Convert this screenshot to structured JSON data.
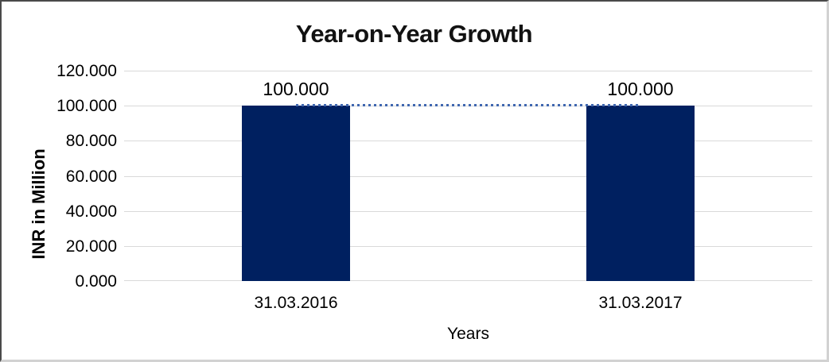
{
  "window": {
    "background": "#ffffff",
    "border_dark": "#4a4a4a",
    "border_light": "#d2d2d2"
  },
  "chart_data": {
    "type": "bar",
    "title": "Year-on-Year Growth",
    "categories": [
      "31.03.2016",
      "31.03.2017"
    ],
    "series": [
      {
        "values": [
          100.0,
          100.0
        ],
        "data_labels": [
          "100.000",
          "100.000"
        ],
        "color": "#002060"
      }
    ],
    "connector_line": {
      "value": 100.0,
      "style": "dotted",
      "color": "#4067b0"
    },
    "xlabel": "Years",
    "ylabel": "INR in Million",
    "ylim": [
      0,
      120
    ],
    "ytick_step": 20,
    "ytick_labels": [
      "0.000",
      "20.000",
      "40.000",
      "60.000",
      "80.000",
      "100.000",
      "120.000"
    ],
    "grid": true,
    "gridline_color": "#d9d9d9",
    "legend": "none",
    "text_color": "#000000"
  }
}
